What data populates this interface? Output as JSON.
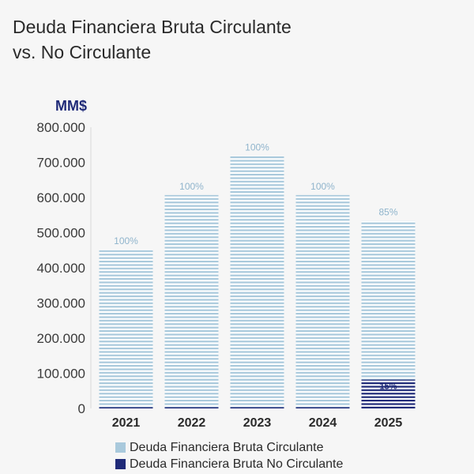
{
  "chart_data": {
    "type": "bar",
    "stacked": true,
    "title": [
      "Deuda Financiera Bruta Circulante",
      "vs. No Circulante"
    ],
    "unit_label": "MM$",
    "categories": [
      "2021",
      "2022",
      "2023",
      "2024",
      "2025"
    ],
    "ylim": [
      0,
      800000
    ],
    "yticks": [
      0,
      100000,
      200000,
      300000,
      400000,
      500000,
      600000,
      700000,
      800000
    ],
    "ytick_labels": [
      "0",
      "100.000",
      "200.000",
      "300.000",
      "400.000",
      "500.000",
      "600.000",
      "700.000",
      "800.000"
    ],
    "series": [
      {
        "name": "Deuda Financiera Bruta No Circulante",
        "color": "#1f2a78",
        "values": [
          0,
          0,
          0,
          0,
          82000
        ],
        "labels": [
          "",
          "",
          "",
          "",
          "15%"
        ]
      },
      {
        "name": "Deuda Financiera Bruta Circulante",
        "color": "#a9c9dc",
        "values": [
          452000,
          607000,
          718000,
          607000,
          452000
        ],
        "labels": [
          "100%",
          "100%",
          "100%",
          "100%",
          "85%"
        ]
      }
    ],
    "legend": [
      {
        "name": "Deuda Financiera Bruta Circulante",
        "color": "#a9c9dc"
      },
      {
        "name": "Deuda Financiera Bruta No Circulante",
        "color": "#1f2a78"
      }
    ],
    "grid": false,
    "legend_position": "bottom-left"
  }
}
